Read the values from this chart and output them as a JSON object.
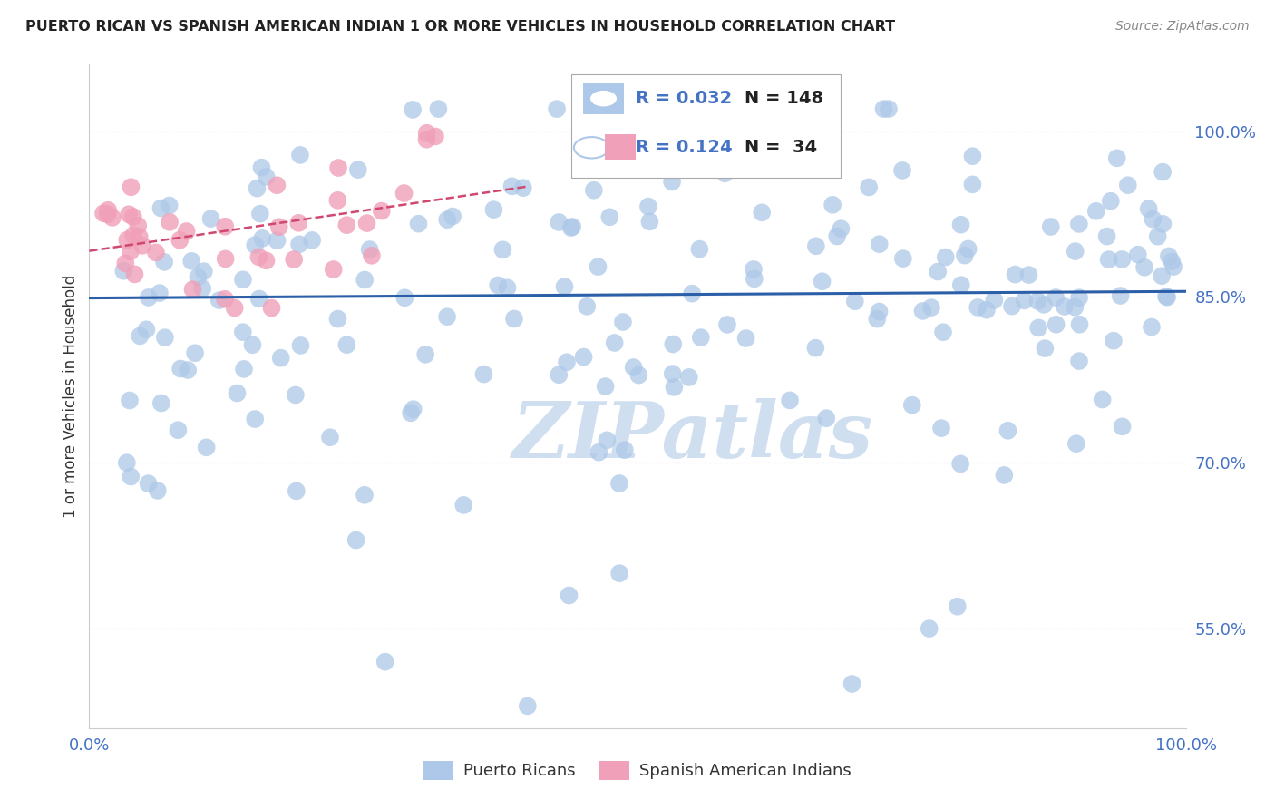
{
  "title": "PUERTO RICAN VS SPANISH AMERICAN INDIAN 1 OR MORE VEHICLES IN HOUSEHOLD CORRELATION CHART",
  "source": "Source: ZipAtlas.com",
  "ylabel": "1 or more Vehicles in Household",
  "xmin": 0.0,
  "xmax": 1.0,
  "ymin": 0.46,
  "ymax": 1.06,
  "yticks": [
    0.55,
    0.7,
    0.85,
    1.0
  ],
  "ytick_labels": [
    "55.0%",
    "70.0%",
    "85.0%",
    "100.0%"
  ],
  "blue_R": 0.032,
  "blue_N": 148,
  "pink_R": 0.124,
  "pink_N": 34,
  "blue_dot_color": "#adc8e8",
  "pink_dot_color": "#f0a0b8",
  "blue_line_color": "#2b5fa8",
  "pink_line_color": "#d04870",
  "grid_color": "#d8d8d8",
  "tick_color": "#4472c4",
  "watermark": "ZIPatlas",
  "watermark_color": "#d0dff0",
  "legend_R_color": "#4472c4",
  "legend_N_color": "#222222"
}
